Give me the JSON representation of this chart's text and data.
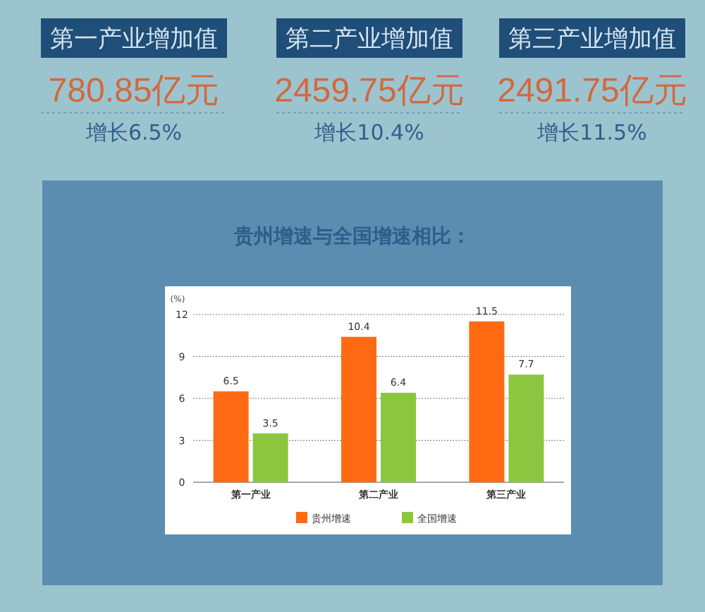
{
  "chart_data": [
    {
      "type": "other",
      "annotations": [
        "第一产业增加值",
        "780.85亿元",
        "增长6.5%",
        "第二产业增加值",
        "2459.75亿元",
        "增长10.4%",
        "第三产业增加值",
        "2491.75亿元",
        "增长11.5%"
      ]
    },
    {
      "type": "bar",
      "title": "贵州增速与全国增速相比：",
      "ylabel": "(%)",
      "categories": [
        "第一产业",
        "第二产业",
        "第三产业"
      ],
      "series": [
        {
          "name": "贵州增速",
          "color": "#ff6a13",
          "values": [
            6.5,
            10.4,
            11.5
          ]
        },
        {
          "name": "全国增速",
          "color": "#8cc63f",
          "values": [
            3.5,
            6.4,
            7.7
          ]
        }
      ],
      "ylim": [
        0,
        12
      ],
      "yticks": [
        0,
        3,
        6,
        9,
        12
      ],
      "grid": "y",
      "legend": "bottom",
      "data_labels": true
    }
  ]
}
